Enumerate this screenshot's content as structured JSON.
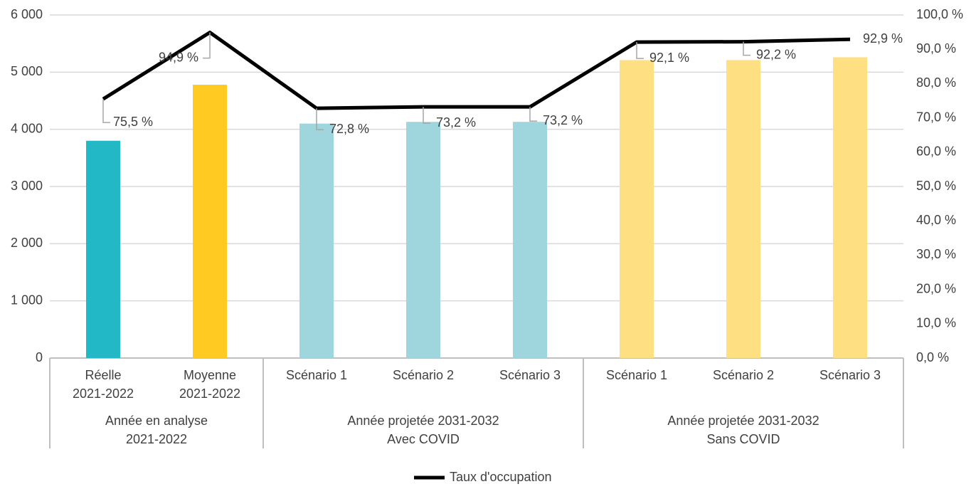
{
  "chart_data": {
    "type": "bar_line",
    "groups": [
      {
        "label": [
          "Année en analyse",
          "2021-2022"
        ],
        "categories": [
          [
            "Réelle",
            "2021-2022"
          ],
          [
            "Moyenne",
            "2021-2022"
          ]
        ]
      },
      {
        "label": [
          "Année projetée 2031-2032",
          "Avec COVID"
        ],
        "categories": [
          [
            "Scénario 1"
          ],
          [
            "Scénario 2"
          ],
          [
            "Scénario 3"
          ]
        ]
      },
      {
        "label": [
          "Année projetée 2031-2032",
          "Sans COVID"
        ],
        "categories": [
          [
            "Scénario 1"
          ],
          [
            "Scénario 2"
          ],
          [
            "Scénario 3"
          ]
        ]
      }
    ],
    "series": [
      {
        "type": "bar",
        "colors": [
          "#22b8c6",
          "#ffcb22",
          "#9fd5dc",
          "#9fd5dc",
          "#9fd5dc",
          "#fee083",
          "#fee083",
          "#fee083"
        ],
        "values": [
          3800,
          4780,
          4100,
          4130,
          4130,
          5210,
          5210,
          5260
        ]
      },
      {
        "type": "line",
        "name": "Taux d'occupation",
        "color": "#000000",
        "axis": "y2",
        "values": [
          75.5,
          94.9,
          72.8,
          73.2,
          73.2,
          92.1,
          92.2,
          92.9
        ],
        "value_labels": [
          "75,5 %",
          "94,9 %",
          "72,8 %",
          "73,2 %",
          "73,2 %",
          "92,1 %",
          "92,2 %",
          "92,9 %"
        ]
      }
    ],
    "ylim": [
      0,
      6000
    ],
    "yticks": [
      0,
      {
        "value": 1000,
        "label": "1 000"
      },
      {
        "value": 2000,
        "label": "2 000"
      },
      {
        "value": 3000,
        "label": "3 000"
      },
      {
        "value": 4000,
        "label": "4 000"
      },
      {
        "value": 5000,
        "label": "5 000"
      },
      {
        "value": 6000,
        "label": "6 000"
      }
    ],
    "y2lim": [
      0,
      100
    ],
    "y2ticks": [
      {
        "value": 0,
        "label": "0,0 %"
      },
      {
        "value": 10,
        "label": "10,0 %"
      },
      {
        "value": 20,
        "label": "20,0 %"
      },
      {
        "value": 30,
        "label": "30,0 %"
      },
      {
        "value": 40,
        "label": "40,0 %"
      },
      {
        "value": 50,
        "label": "50,0 %"
      },
      {
        "value": 60,
        "label": "60,0 %"
      },
      {
        "value": 70,
        "label": "70,0 %"
      },
      {
        "value": 80,
        "label": "80,0 %"
      },
      {
        "value": 90,
        "label": "90,0 %"
      },
      {
        "value": 100,
        "label": "100,0 %"
      }
    ],
    "grid": true,
    "legend": "bottom"
  }
}
